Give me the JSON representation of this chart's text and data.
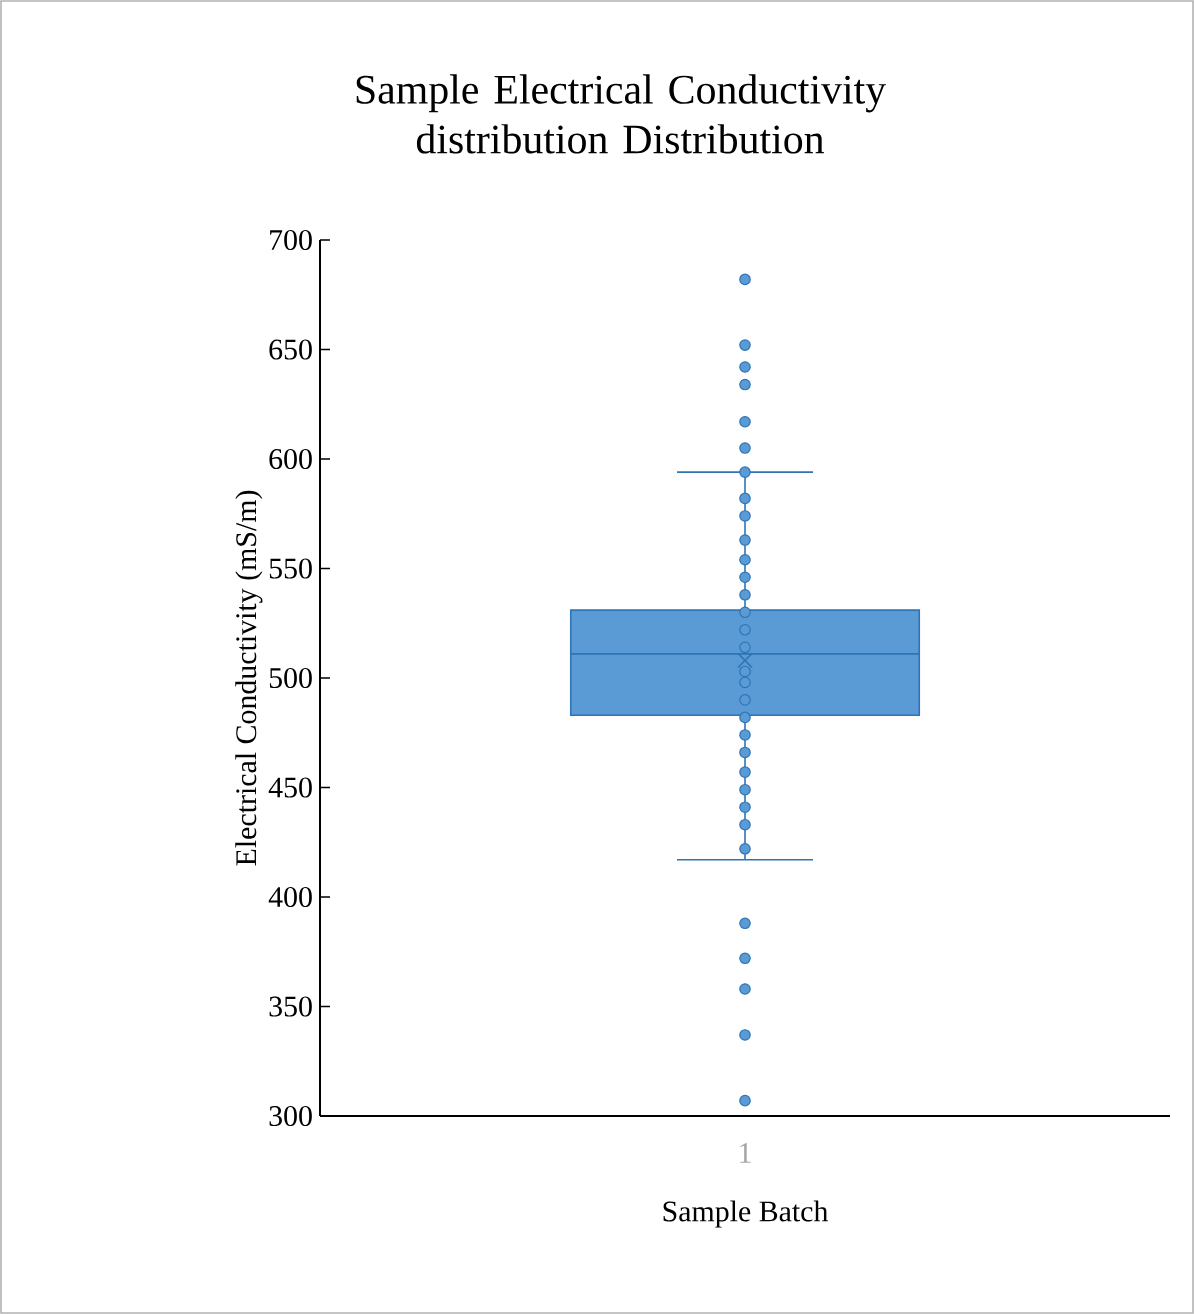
{
  "chart_data": {
    "type": "box",
    "title": "Sample Electrical Conductivity distribution Distribution",
    "xlabel": "Sample Batch",
    "ylabel": "Electrical Conductivity (mS/m)",
    "categories": [
      "1"
    ],
    "ylim": [
      300,
      700
    ],
    "yticks": [
      300,
      350,
      400,
      450,
      500,
      550,
      600,
      650,
      700
    ],
    "grid": false,
    "color": "#5b9bd5",
    "boxes": [
      {
        "low": 417,
        "q1": 483,
        "median": 511,
        "q3": 531,
        "high": 594,
        "mean": 508,
        "outliers": [
          682,
          652,
          642,
          634,
          617,
          605,
          388,
          372,
          358,
          337,
          307
        ]
      }
    ],
    "series": [
      {
        "type": "scatter",
        "color": "#5b9bd5",
        "marker": "circle",
        "x": [
          "1",
          "1",
          "1",
          "1",
          "1",
          "1",
          "1",
          "1",
          "1",
          "1",
          "1",
          "1",
          "1",
          "1",
          "1",
          "1",
          "1",
          "1",
          "1",
          "1",
          "1"
        ],
        "values": [
          594,
          582,
          574,
          563,
          554,
          546,
          538,
          530,
          522,
          514,
          503,
          498,
          490,
          482,
          474,
          466,
          457,
          449,
          441,
          433,
          422
        ]
      }
    ]
  }
}
